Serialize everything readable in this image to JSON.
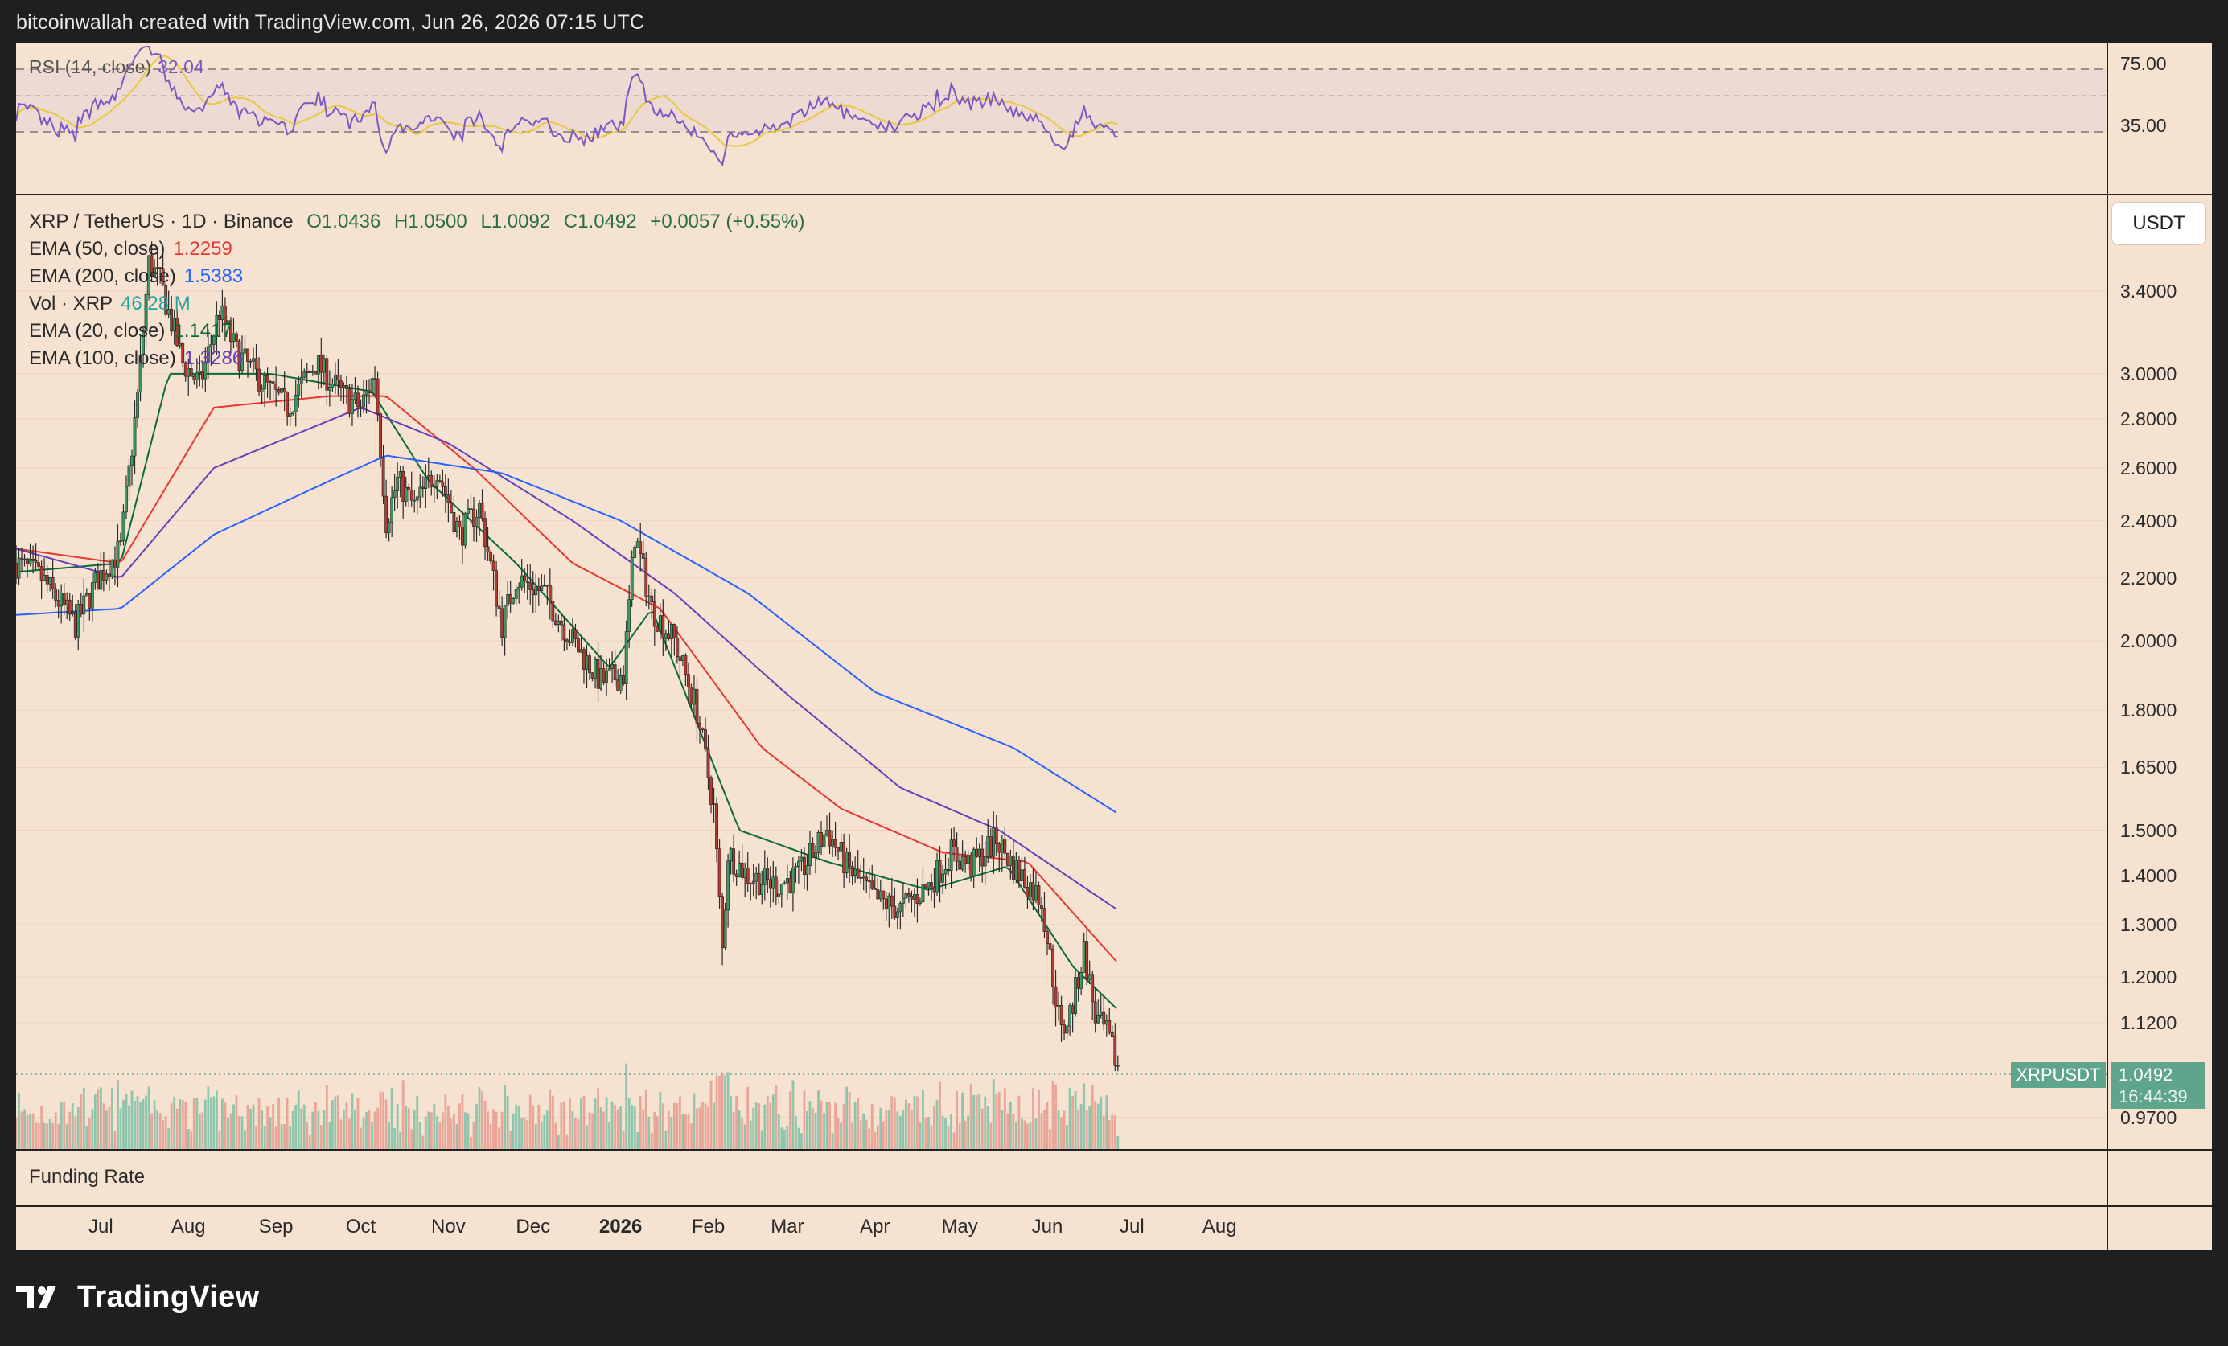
{
  "header": {
    "credit": "bitcoinwallah created with TradingView.com, Jun 26, 2026 07:15 UTC"
  },
  "footer": {
    "brand": "TradingView"
  },
  "rsi_panel": {
    "label": "RSI (14, close)",
    "value": "32.04",
    "levels": [
      "75.00",
      "35.00"
    ]
  },
  "main_panel": {
    "symbol_line": "XRP / TetherUS · 1D · Binance",
    "ohlc": {
      "o": "O1.0436",
      "h": "H1.0500",
      "l": "L1.0092",
      "c": "C1.0492",
      "chg": "+0.0057 (+0.55%)"
    },
    "indicators": [
      {
        "label": "EMA (50, close)",
        "value": "1.2259",
        "color": "#e53935"
      },
      {
        "label": "EMA (200, close)",
        "value": "1.5383",
        "color": "#2962ff"
      },
      {
        "label": "Vol · XRP",
        "value": "46.28 M",
        "color": "#26a69a"
      },
      {
        "label": "EMA (20, close)",
        "value": "1.1417",
        "color": "#0b6b3a"
      },
      {
        "label": "EMA (100, close)",
        "value": "1.3286",
        "color": "#6a3fb5"
      }
    ],
    "currency_button": "USDT",
    "price_tag": {
      "symbol": "XRPUSDT",
      "price": "1.0492",
      "countdown": "16:44:39",
      "color": "#5ea58c"
    }
  },
  "funding_panel": {
    "label": "Funding Rate"
  },
  "chart_data": {
    "type": "candlestick",
    "symbol": "XRPUSDT",
    "scale": "log",
    "y_ticks": [
      "3.4000",
      "3.0000",
      "2.8000",
      "2.6000",
      "2.4000",
      "2.2000",
      "2.0000",
      "1.8000",
      "1.6500",
      "1.5000",
      "1.4000",
      "1.3000",
      "1.2000",
      "1.1200",
      "0.9700"
    ],
    "x_months": [
      "Jul",
      "Aug",
      "Sep",
      "Oct",
      "Nov",
      "Dec",
      "2026",
      "Feb",
      "Mar",
      "Apr",
      "May",
      "Jun",
      "Jul",
      "Aug"
    ],
    "ylim": [
      0.93,
      3.9
    ],
    "price_path": [
      [
        "2025-06-01",
        2.25
      ],
      [
        "2025-06-10",
        2.2
      ],
      [
        "2025-06-22",
        2.05
      ],
      [
        "2025-06-30",
        2.2
      ],
      [
        "2025-07-08",
        2.3
      ],
      [
        "2025-07-14",
        2.9
      ],
      [
        "2025-07-18",
        3.55
      ],
      [
        "2025-07-22",
        3.45
      ],
      [
        "2025-07-30",
        3.05
      ],
      [
        "2025-08-05",
        2.95
      ],
      [
        "2025-08-12",
        3.3
      ],
      [
        "2025-08-18",
        3.1
      ],
      [
        "2025-08-28",
        2.95
      ],
      [
        "2025-09-05",
        2.85
      ],
      [
        "2025-09-15",
        3.05
      ],
      [
        "2025-09-25",
        2.9
      ],
      [
        "2025-10-01",
        2.85
      ],
      [
        "2025-10-06",
        3.0
      ],
      [
        "2025-10-10",
        2.4
      ],
      [
        "2025-10-14",
        2.55
      ],
      [
        "2025-10-20",
        2.45
      ],
      [
        "2025-10-28",
        2.6
      ],
      [
        "2025-11-05",
        2.35
      ],
      [
        "2025-11-12",
        2.45
      ],
      [
        "2025-11-20",
        2.05
      ],
      [
        "2025-11-25",
        2.2
      ],
      [
        "2025-12-05",
        2.15
      ],
      [
        "2025-12-15",
        2.0
      ],
      [
        "2025-12-25",
        1.88
      ],
      [
        "2026-01-02",
        1.9
      ],
      [
        "2026-01-06",
        2.35
      ],
      [
        "2026-01-12",
        2.1
      ],
      [
        "2026-01-20",
        2.0
      ],
      [
        "2026-01-28",
        1.8
      ],
      [
        "2026-02-03",
        1.55
      ],
      [
        "2026-02-06",
        1.25
      ],
      [
        "2026-02-08",
        1.45
      ],
      [
        "2026-02-15",
        1.4
      ],
      [
        "2026-02-25",
        1.38
      ],
      [
        "2026-03-05",
        1.4
      ],
      [
        "2026-03-15",
        1.5
      ],
      [
        "2026-03-22",
        1.42
      ],
      [
        "2026-04-01",
        1.35
      ],
      [
        "2026-04-10",
        1.33
      ],
      [
        "2026-04-20",
        1.38
      ],
      [
        "2026-04-28",
        1.45
      ],
      [
        "2026-05-05",
        1.42
      ],
      [
        "2026-05-14",
        1.48
      ],
      [
        "2026-05-20",
        1.42
      ],
      [
        "2026-05-30",
        1.35
      ],
      [
        "2026-06-03",
        1.2
      ],
      [
        "2026-06-06",
        1.1
      ],
      [
        "2026-06-10",
        1.15
      ],
      [
        "2026-06-14",
        1.25
      ],
      [
        "2026-06-18",
        1.13
      ],
      [
        "2026-06-22",
        1.1
      ],
      [
        "2026-06-26",
        1.0492
      ]
    ],
    "ema_values": {
      "EMA 20": [
        [
          "2025-06-01",
          2.22
        ],
        [
          "2025-07-08",
          2.25
        ],
        [
          "2025-07-25",
          3.0
        ],
        [
          "2025-08-30",
          3.0
        ],
        [
          "2025-10-05",
          2.92
        ],
        [
          "2025-10-25",
          2.55
        ],
        [
          "2025-11-25",
          2.25
        ],
        [
          "2025-12-28",
          1.92
        ],
        [
          "2026-01-12",
          2.1
        ],
        [
          "2026-02-12",
          1.5
        ],
        [
          "2026-03-15",
          1.43
        ],
        [
          "2026-04-20",
          1.37
        ],
        [
          "2026-05-18",
          1.42
        ],
        [
          "2026-06-10",
          1.22
        ],
        [
          "2026-06-26",
          1.1417
        ]
      ],
      "EMA 50": [
        [
          "2025-06-01",
          2.3
        ],
        [
          "2025-07-08",
          2.25
        ],
        [
          "2025-08-10",
          2.85
        ],
        [
          "2025-09-20",
          2.9
        ],
        [
          "2025-10-10",
          2.9
        ],
        [
          "2025-11-10",
          2.6
        ],
        [
          "2025-12-15",
          2.25
        ],
        [
          "2026-01-15",
          2.1
        ],
        [
          "2026-02-20",
          1.7
        ],
        [
          "2026-03-20",
          1.55
        ],
        [
          "2026-04-25",
          1.45
        ],
        [
          "2026-05-25",
          1.43
        ],
        [
          "2026-06-26",
          1.2259
        ]
      ],
      "EMA 100": [
        [
          "2025-06-01",
          2.3
        ],
        [
          "2025-07-08",
          2.2
        ],
        [
          "2025-08-10",
          2.6
        ],
        [
          "2025-10-01",
          2.85
        ],
        [
          "2025-11-01",
          2.7
        ],
        [
          "2025-12-15",
          2.4
        ],
        [
          "2026-01-20",
          2.15
        ],
        [
          "2026-02-28",
          1.85
        ],
        [
          "2026-04-10",
          1.6
        ],
        [
          "2026-05-15",
          1.5
        ],
        [
          "2026-06-26",
          1.3286
        ]
      ],
      "EMA 200": [
        [
          "2025-06-01",
          2.08
        ],
        [
          "2025-07-08",
          2.1
        ],
        [
          "2025-08-10",
          2.35
        ],
        [
          "2025-09-20",
          2.55
        ],
        [
          "2025-10-10",
          2.65
        ],
        [
          "2025-11-20",
          2.58
        ],
        [
          "2026-01-01",
          2.4
        ],
        [
          "2026-02-15",
          2.15
        ],
        [
          "2026-04-01",
          1.85
        ],
        [
          "2026-05-20",
          1.7
        ],
        [
          "2026-06-26",
          1.5383
        ]
      ]
    },
    "last_price": 1.0492,
    "rsi_levels": [
      75,
      35
    ],
    "rsi_last": 32.04
  }
}
